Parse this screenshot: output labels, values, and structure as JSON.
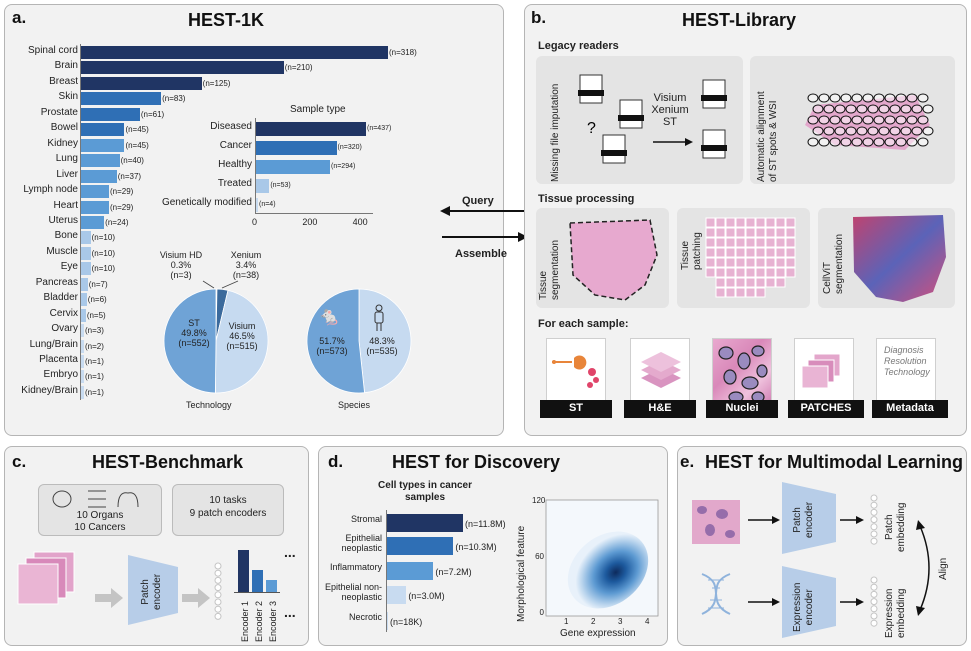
{
  "panel_a": {
    "label": "a.",
    "title": "HEST-1K",
    "organs": [
      {
        "name": "Spinal cord",
        "n": "(n=318)",
        "v": 318
      },
      {
        "name": "Brain",
        "n": "(n=210)",
        "v": 210
      },
      {
        "name": "Breast",
        "n": "(n=125)",
        "v": 125
      },
      {
        "name": "Skin",
        "n": "(n=83)",
        "v": 83
      },
      {
        "name": "Prostate",
        "n": "(n=61)",
        "v": 61
      },
      {
        "name": "Bowel",
        "n": "(n=45)",
        "v": 45
      },
      {
        "name": "Kidney",
        "n": "(n=45)",
        "v": 45
      },
      {
        "name": "Lung",
        "n": "(n=40)",
        "v": 40
      },
      {
        "name": "Liver",
        "n": "(n=37)",
        "v": 37
      },
      {
        "name": "Lymph node",
        "n": "(n=29)",
        "v": 29
      },
      {
        "name": "Heart",
        "n": "(n=29)",
        "v": 29
      },
      {
        "name": "Uterus",
        "n": "(n=24)",
        "v": 24
      },
      {
        "name": "Bone",
        "n": "(n=10)",
        "v": 10
      },
      {
        "name": "Muscle",
        "n": "(n=10)",
        "v": 10
      },
      {
        "name": "Eye",
        "n": "(n=10)",
        "v": 10
      },
      {
        "name": "Pancreas",
        "n": "(n=7)",
        "v": 7
      },
      {
        "name": "Bladder",
        "n": "(n=6)",
        "v": 6
      },
      {
        "name": "Cervix",
        "n": "(n=5)",
        "v": 5
      },
      {
        "name": "Ovary",
        "n": "(n=3)",
        "v": 3
      },
      {
        "name": "Lung/Brain",
        "n": "(n=2)",
        "v": 2
      },
      {
        "name": "Placenta",
        "n": "(n=1)",
        "v": 1
      },
      {
        "name": "Embryo",
        "n": "(n=1)",
        "v": 1
      },
      {
        "name": "Kidney/Brain",
        "n": "(n=1)",
        "v": 1
      }
    ],
    "sample_type": {
      "title": "Sample type",
      "items": [
        {
          "name": "Diseased",
          "n": "(n=437)",
          "v": 437
        },
        {
          "name": "Cancer",
          "n": "(n=320)",
          "v": 320
        },
        {
          "name": "Healthy",
          "n": "(n=294)",
          "v": 294
        },
        {
          "name": "Treated",
          "n": "(n=53)",
          "v": 53
        },
        {
          "name": "Genetically modified",
          "n": "(n=4)",
          "v": 4
        }
      ],
      "ticks": [
        "0",
        "200",
        "400"
      ]
    },
    "technology": {
      "label": "Technology",
      "st": [
        "ST",
        "49.8%",
        "(n=552)"
      ],
      "visium": [
        "Visium",
        "46.5%",
        "(n=515)"
      ],
      "visium_hd": [
        "Visium HD",
        "0.3%",
        "(n=3)"
      ],
      "xenium": [
        "Xenium",
        "3.4%",
        "(n=38)"
      ]
    },
    "species": {
      "label": "Species",
      "mouse": [
        "51.7%",
        "(n=573)"
      ],
      "human": [
        "48.3%",
        "(n=535)"
      ]
    }
  },
  "panel_b": {
    "label": "b.",
    "title": "HEST-Library",
    "legacy_title": "Legacy readers",
    "imputation": "Missing file imputation",
    "tech_list": [
      "Visium",
      "Xenium",
      "ST"
    ],
    "alignment": [
      "Automatic alignment",
      "of ST spots & WSI"
    ],
    "tissue_title": "Tissue processing",
    "seg": [
      "Tissue",
      "segmentation"
    ],
    "patch": [
      "Tissue",
      "patching"
    ],
    "cellvit": [
      "CellViT",
      "segmentation"
    ],
    "each_title": "For each sample:",
    "tags": [
      "ST",
      "H&E",
      "Nuclei",
      "PATCHES",
      "Metadata"
    ],
    "meta_words": [
      "Diagnosis",
      "Resolution",
      "Technology"
    ]
  },
  "arrows": {
    "query": "Query",
    "assemble": "Assemble"
  },
  "panel_c": {
    "label": "c.",
    "title": "HEST-Benchmark",
    "box1": [
      "10 Organs",
      "10 Cancers"
    ],
    "box2": [
      "10 tasks",
      "9 patch encoders"
    ],
    "encoder": [
      "Patch",
      "encoder"
    ],
    "encoders": [
      "Encoder 1",
      "Encoder 2",
      "Encoder 3"
    ],
    "dots": "..."
  },
  "panel_d": {
    "label": "d.",
    "title": "HEST for Discovery",
    "bar_title": [
      "Cell types in cancer",
      "samples"
    ],
    "cells": [
      {
        "name": "Stromal",
        "n": "(n=11.8M)",
        "v": 11.8
      },
      {
        "name": "Epithelial neoplastic",
        "n": "(n=10.3M)",
        "v": 10.3
      },
      {
        "name": "Inflammatory",
        "n": "(n=7.2M)",
        "v": 7.2
      },
      {
        "name": "Epithelial non-neoplastic",
        "n": "(n=3.0M)",
        "v": 3.0
      },
      {
        "name": "Necrotic",
        "n": "(n=18K)",
        "v": 0.018
      }
    ],
    "density": {
      "xlabel": "Gene expression",
      "ylabel": "Morphological feature",
      "xticks": [
        "1",
        "2",
        "3",
        "4"
      ],
      "yticks": [
        "0",
        "60",
        "120"
      ]
    }
  },
  "panel_e": {
    "label": "e.",
    "title": "HEST for Multimodal Learning",
    "patch_enc": [
      "Patch",
      "encoder"
    ],
    "expr_enc": [
      "Expression",
      "encoder"
    ],
    "patch_emb": [
      "Patch",
      "embedding"
    ],
    "expr_emb": [
      "Expression",
      "embedding"
    ],
    "align": "Align"
  },
  "colors": {
    "navy": "#203564",
    "blue": "#2f6fb5",
    "mid": "#5b9bd5",
    "light": "#a9c8e8",
    "pale": "#c8dbf0"
  }
}
